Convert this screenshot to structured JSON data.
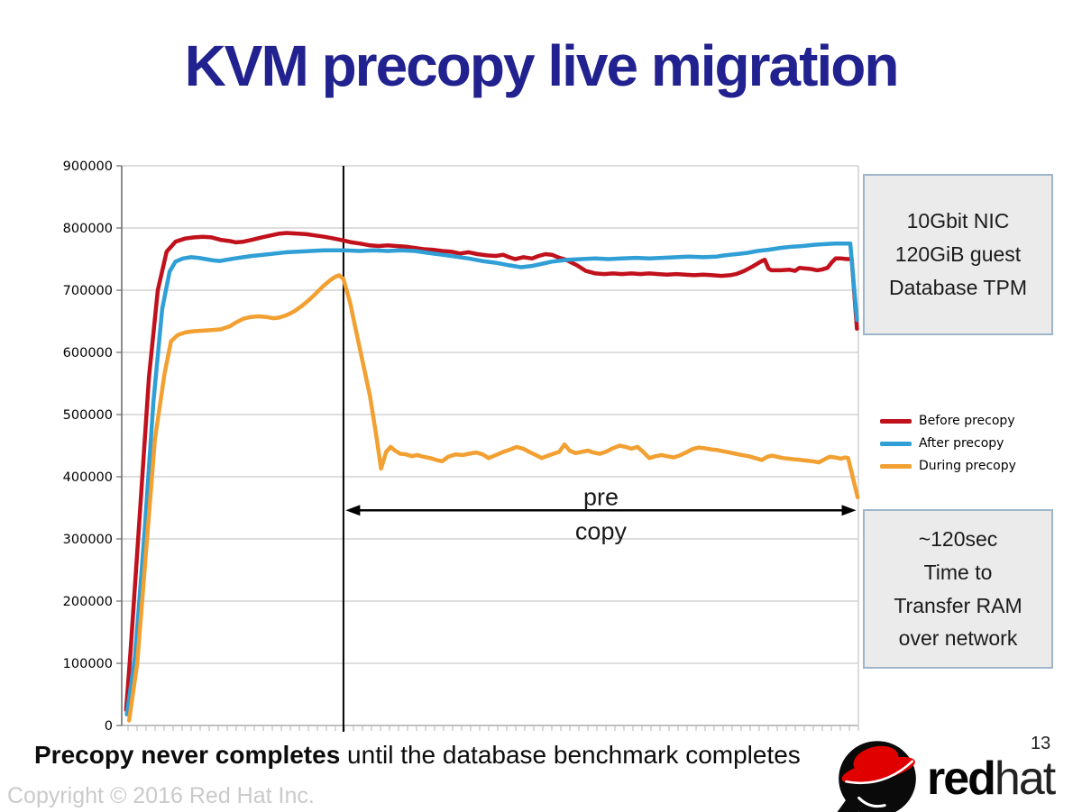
{
  "slide": {
    "title": "KVM precopy live migration",
    "title_color": "#21218f",
    "caption_bold": "Precopy never completes",
    "caption_rest": " until the database benchmark completes",
    "copyright": "Copyright © 2016 Red Hat Inc.",
    "page_number": "13"
  },
  "info_boxes": {
    "top": "10Gbit NIC\n120GiB guest\nDatabase TPM",
    "bottom": "~120sec\nTime to\nTransfer RAM\nover network"
  },
  "logo": {
    "red": "red",
    "hat": "hat",
    "brand_red": "#e00000",
    "brand_black": "#0a0a0a"
  },
  "chart_data": {
    "type": "line",
    "title": "",
    "xlabel": "",
    "ylabel": "",
    "ylim": [
      0,
      900000
    ],
    "y_ticks": [
      0,
      100000,
      200000,
      300000,
      400000,
      500000,
      600000,
      700000,
      800000,
      900000
    ],
    "x_ticks_labeled": false,
    "grid": "horizontal",
    "grid_color": "#c9c9c9",
    "legend_position": "right-middle",
    "series": [
      {
        "name": "Before precopy",
        "color": "#c0111c",
        "points": [
          [
            0.6,
            25000
          ],
          [
            1.2,
            120000
          ],
          [
            2.4,
            330000
          ],
          [
            3.7,
            560000
          ],
          [
            4.9,
            700000
          ],
          [
            6.1,
            762000
          ],
          [
            7.3,
            778000
          ],
          [
            8.6,
            783000
          ],
          [
            9.8,
            785000
          ],
          [
            11.0,
            786000
          ],
          [
            12.2,
            785000
          ],
          [
            13.4,
            781000
          ],
          [
            14.7,
            779000
          ],
          [
            15.5,
            777000
          ],
          [
            16.5,
            778000
          ],
          [
            17.7,
            781000
          ],
          [
            19.0,
            785000
          ],
          [
            20.2,
            788000
          ],
          [
            21.4,
            791000
          ],
          [
            22.4,
            792000
          ],
          [
            23.9,
            791000
          ],
          [
            25.1,
            790000
          ],
          [
            26.3,
            788000
          ],
          [
            27.5,
            786000
          ],
          [
            28.8,
            783000
          ],
          [
            30.1,
            780000
          ],
          [
            31.2,
            777000
          ],
          [
            32.4,
            775000
          ],
          [
            33.7,
            772000
          ],
          [
            34.9,
            771000
          ],
          [
            36.1,
            772000
          ],
          [
            37.3,
            771000
          ],
          [
            38.6,
            770000
          ],
          [
            39.8,
            768000
          ],
          [
            41.0,
            766000
          ],
          [
            42.2,
            765000
          ],
          [
            43.5,
            763000
          ],
          [
            44.7,
            762000
          ],
          [
            45.9,
            759000
          ],
          [
            47.1,
            761000
          ],
          [
            48.3,
            758000
          ],
          [
            49.6,
            756000
          ],
          [
            50.8,
            755000
          ],
          [
            51.8,
            757000
          ],
          [
            52.6,
            753000
          ],
          [
            53.4,
            750000
          ],
          [
            54.5,
            753000
          ],
          [
            55.7,
            751000
          ],
          [
            56.6,
            755000
          ],
          [
            57.5,
            758000
          ],
          [
            58.4,
            757000
          ],
          [
            59.4,
            752000
          ],
          [
            60.3,
            749000
          ],
          [
            61.8,
            740000
          ],
          [
            63.0,
            731000
          ],
          [
            64.3,
            727000
          ],
          [
            65.5,
            726000
          ],
          [
            66.7,
            727000
          ],
          [
            67.9,
            726000
          ],
          [
            69.2,
            727000
          ],
          [
            70.4,
            726000
          ],
          [
            71.6,
            727000
          ],
          [
            72.8,
            726000
          ],
          [
            74.0,
            725000
          ],
          [
            75.3,
            726000
          ],
          [
            76.5,
            725000
          ],
          [
            77.7,
            724000
          ],
          [
            78.9,
            725000
          ],
          [
            80.2,
            724000
          ],
          [
            81.4,
            723000
          ],
          [
            82.6,
            724000
          ],
          [
            83.4,
            726000
          ],
          [
            84.5,
            731000
          ],
          [
            85.6,
            738000
          ],
          [
            86.9,
            747000
          ],
          [
            87.3,
            749000
          ],
          [
            87.8,
            735000
          ],
          [
            88.2,
            732000
          ],
          [
            89.5,
            732000
          ],
          [
            90.6,
            733000
          ],
          [
            91.4,
            731000
          ],
          [
            92.0,
            736000
          ],
          [
            92.8,
            735000
          ],
          [
            93.6,
            734000
          ],
          [
            94.4,
            732000
          ],
          [
            95.0,
            733000
          ],
          [
            95.8,
            736000
          ],
          [
            96.4,
            745000
          ],
          [
            96.9,
            751000
          ],
          [
            97.7,
            751000
          ],
          [
            98.5,
            750000
          ],
          [
            99.1,
            750000
          ],
          [
            99.8,
            638000
          ]
        ]
      },
      {
        "name": "After precopy",
        "color": "#2f9fd6",
        "points": [
          [
            0.7,
            18000
          ],
          [
            1.8,
            110000
          ],
          [
            3.1,
            310000
          ],
          [
            4.3,
            520000
          ],
          [
            5.5,
            670000
          ],
          [
            6.5,
            730000
          ],
          [
            7.3,
            746000
          ],
          [
            8.3,
            751000
          ],
          [
            9.4,
            753000
          ],
          [
            10.4,
            752000
          ],
          [
            11.4,
            750000
          ],
          [
            12.4,
            748000
          ],
          [
            13.3,
            747000
          ],
          [
            14.3,
            749000
          ],
          [
            15.3,
            751000
          ],
          [
            16.5,
            753000
          ],
          [
            17.7,
            755000
          ],
          [
            19.2,
            757000
          ],
          [
            20.8,
            759000
          ],
          [
            22.4,
            761000
          ],
          [
            23.9,
            762000
          ],
          [
            25.7,
            763000
          ],
          [
            27.5,
            764000
          ],
          [
            30.1,
            764000
          ],
          [
            32.4,
            763000
          ],
          [
            34.3,
            764000
          ],
          [
            36.1,
            763000
          ],
          [
            37.9,
            764000
          ],
          [
            39.8,
            763000
          ],
          [
            41.6,
            760000
          ],
          [
            43.5,
            757000
          ],
          [
            45.3,
            754000
          ],
          [
            47.1,
            751000
          ],
          [
            48.9,
            747000
          ],
          [
            50.8,
            744000
          ],
          [
            52.6,
            740000
          ],
          [
            54.2,
            737000
          ],
          [
            55.7,
            739000
          ],
          [
            56.9,
            742000
          ],
          [
            58.4,
            746000
          ],
          [
            59.9,
            748000
          ],
          [
            60.6,
            749000
          ],
          [
            62.4,
            750000
          ],
          [
            64.3,
            751000
          ],
          [
            66.1,
            750000
          ],
          [
            67.9,
            751000
          ],
          [
            69.8,
            752000
          ],
          [
            71.6,
            751000
          ],
          [
            73.4,
            752000
          ],
          [
            75.3,
            753000
          ],
          [
            77.1,
            754000
          ],
          [
            78.9,
            753000
          ],
          [
            80.8,
            754000
          ],
          [
            81.8,
            756000
          ],
          [
            83.4,
            758000
          ],
          [
            84.9,
            760000
          ],
          [
            86.3,
            763000
          ],
          [
            87.8,
            765000
          ],
          [
            89.4,
            768000
          ],
          [
            91.0,
            770000
          ],
          [
            92.4,
            771000
          ],
          [
            94.0,
            773000
          ],
          [
            95.4,
            774000
          ],
          [
            96.8,
            775000
          ],
          [
            97.7,
            775000
          ],
          [
            98.4,
            775000
          ],
          [
            98.9,
            775000
          ],
          [
            99.8,
            652000
          ]
        ]
      },
      {
        "name": "During precopy",
        "color": "#f2a031",
        "points": [
          [
            1.0,
            8000
          ],
          [
            2.1,
            100000
          ],
          [
            3.3,
            280000
          ],
          [
            4.5,
            460000
          ],
          [
            5.8,
            565000
          ],
          [
            6.7,
            618000
          ],
          [
            7.6,
            628000
          ],
          [
            8.6,
            632000
          ],
          [
            9.8,
            634000
          ],
          [
            11.0,
            635000
          ],
          [
            12.2,
            636000
          ],
          [
            13.4,
            637000
          ],
          [
            14.7,
            642000
          ],
          [
            15.5,
            648000
          ],
          [
            16.5,
            654000
          ],
          [
            17.5,
            657000
          ],
          [
            18.6,
            658000
          ],
          [
            19.6,
            657000
          ],
          [
            20.6,
            655000
          ],
          [
            21.4,
            656000
          ],
          [
            22.4,
            660000
          ],
          [
            23.4,
            666000
          ],
          [
            24.4,
            674000
          ],
          [
            25.3,
            683000
          ],
          [
            26.3,
            694000
          ],
          [
            27.3,
            706000
          ],
          [
            28.2,
            715000
          ],
          [
            28.9,
            721000
          ],
          [
            29.5,
            724000
          ],
          [
            30.1,
            718000
          ],
          [
            31.0,
            680000
          ],
          [
            31.8,
            635000
          ],
          [
            32.7,
            585000
          ],
          [
            33.7,
            530000
          ],
          [
            34.5,
            470000
          ],
          [
            35.2,
            413000
          ],
          [
            35.9,
            440000
          ],
          [
            36.5,
            448000
          ],
          [
            37.1,
            442000
          ],
          [
            37.8,
            437000
          ],
          [
            38.6,
            436000
          ],
          [
            39.4,
            433000
          ],
          [
            40.1,
            435000
          ],
          [
            41.0,
            432000
          ],
          [
            41.9,
            430000
          ],
          [
            42.7,
            427000
          ],
          [
            43.5,
            425000
          ],
          [
            44.3,
            432000
          ],
          [
            45.3,
            436000
          ],
          [
            46.3,
            435000
          ],
          [
            47.1,
            437000
          ],
          [
            48.1,
            439000
          ],
          [
            49.0,
            436000
          ],
          [
            49.8,
            430000
          ],
          [
            50.8,
            435000
          ],
          [
            51.8,
            440000
          ],
          [
            52.8,
            444000
          ],
          [
            53.6,
            448000
          ],
          [
            54.5,
            445000
          ],
          [
            55.3,
            440000
          ],
          [
            56.2,
            435000
          ],
          [
            57.0,
            430000
          ],
          [
            57.9,
            434000
          ],
          [
            58.6,
            437000
          ],
          [
            59.4,
            440000
          ],
          [
            60.1,
            452000
          ],
          [
            60.8,
            442000
          ],
          [
            61.6,
            438000
          ],
          [
            62.4,
            440000
          ],
          [
            63.3,
            442000
          ],
          [
            64.0,
            439000
          ],
          [
            64.9,
            437000
          ],
          [
            65.7,
            440000
          ],
          [
            66.7,
            446000
          ],
          [
            67.6,
            450000
          ],
          [
            68.4,
            448000
          ],
          [
            69.2,
            445000
          ],
          [
            70.0,
            448000
          ],
          [
            70.8,
            440000
          ],
          [
            71.6,
            430000
          ],
          [
            72.5,
            433000
          ],
          [
            73.3,
            435000
          ],
          [
            74.0,
            433000
          ],
          [
            74.9,
            431000
          ],
          [
            75.7,
            434000
          ],
          [
            76.6,
            439000
          ],
          [
            77.4,
            444000
          ],
          [
            78.3,
            447000
          ],
          [
            79.1,
            446000
          ],
          [
            80.0,
            444000
          ],
          [
            80.8,
            443000
          ],
          [
            81.6,
            441000
          ],
          [
            82.5,
            439000
          ],
          [
            83.3,
            437000
          ],
          [
            84.2,
            435000
          ],
          [
            85.1,
            433000
          ],
          [
            86.0,
            430000
          ],
          [
            86.9,
            427000
          ],
          [
            87.6,
            432000
          ],
          [
            88.3,
            434000
          ],
          [
            89.0,
            432000
          ],
          [
            89.8,
            430000
          ],
          [
            90.6,
            429000
          ],
          [
            91.4,
            428000
          ],
          [
            92.2,
            427000
          ],
          [
            93.0,
            426000
          ],
          [
            93.8,
            425000
          ],
          [
            94.6,
            423000
          ],
          [
            95.4,
            428000
          ],
          [
            96.1,
            432000
          ],
          [
            96.9,
            431000
          ],
          [
            97.6,
            429000
          ],
          [
            98.2,
            431000
          ],
          [
            98.6,
            430000
          ],
          [
            99.9,
            367000
          ]
        ]
      }
    ],
    "annotations": {
      "vline_t": 30.1,
      "precopy_arrow": {
        "t_start": 30.4,
        "t_end": 99.7,
        "value": 346000,
        "label_line1": "pre",
        "label_line2": "copy"
      }
    }
  }
}
